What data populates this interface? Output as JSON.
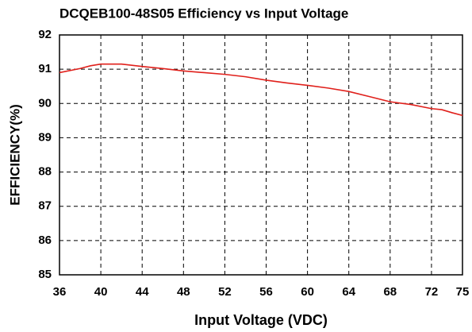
{
  "chart_data": {
    "type": "line",
    "title": "DCQEB100-48S05 Efficiency vs Input Voltage",
    "x_label": "Input Voltage (VDC)",
    "y_label": "EFFICIENCY(%)",
    "x": [
      36,
      38,
      39,
      40,
      42,
      44,
      46,
      48,
      50,
      52,
      54,
      56,
      58,
      60,
      62,
      64,
      66,
      68,
      70,
      72,
      73,
      74,
      75
    ],
    "series": [
      {
        "name": "Efficiency",
        "color": "#e0201b",
        "values": [
          90.9,
          91.02,
          91.1,
          91.15,
          91.15,
          91.08,
          91.02,
          90.95,
          90.9,
          90.85,
          90.78,
          90.68,
          90.6,
          90.53,
          90.45,
          90.35,
          90.2,
          90.05,
          89.97,
          89.85,
          89.82,
          89.73,
          89.65
        ]
      }
    ],
    "xlim": [
      36,
      75
    ],
    "xticks": [
      36,
      40,
      44,
      48,
      52,
      56,
      60,
      64,
      68,
      72,
      75
    ],
    "ylim": [
      85,
      92
    ],
    "yticks": [
      85,
      86,
      87,
      88,
      89,
      90,
      91,
      92
    ],
    "grid": true
  }
}
